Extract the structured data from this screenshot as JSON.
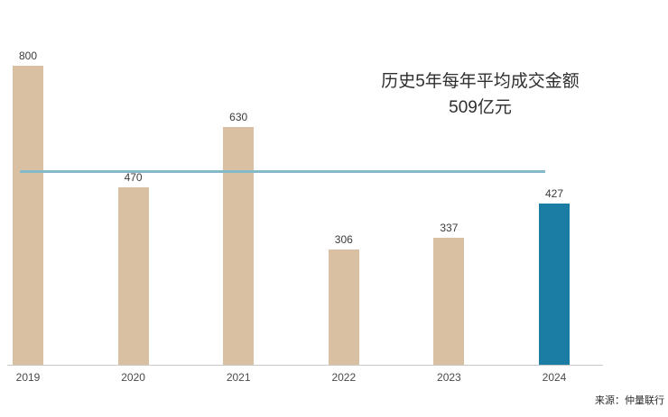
{
  "chart_data": {
    "type": "bar",
    "title": "",
    "categories": [
      "2019",
      "2020",
      "2021",
      "2022",
      "2023",
      "2024"
    ],
    "values": [
      800,
      470,
      630,
      306,
      337,
      427
    ],
    "ylim": [
      0,
      850
    ],
    "grid": false,
    "legend": "none",
    "highlight_index": 5,
    "average_line": {
      "value": 509
    },
    "annotation": {
      "line1": "历史5年每年平均成交金额",
      "line2": "509亿元"
    },
    "colors": {
      "bar": "#d9c0a3",
      "highlight": "#1b7ca4",
      "average_line": "#84b9c9",
      "axis": "#c9c9c9"
    }
  },
  "source": {
    "text": "来源：仲量联行"
  }
}
